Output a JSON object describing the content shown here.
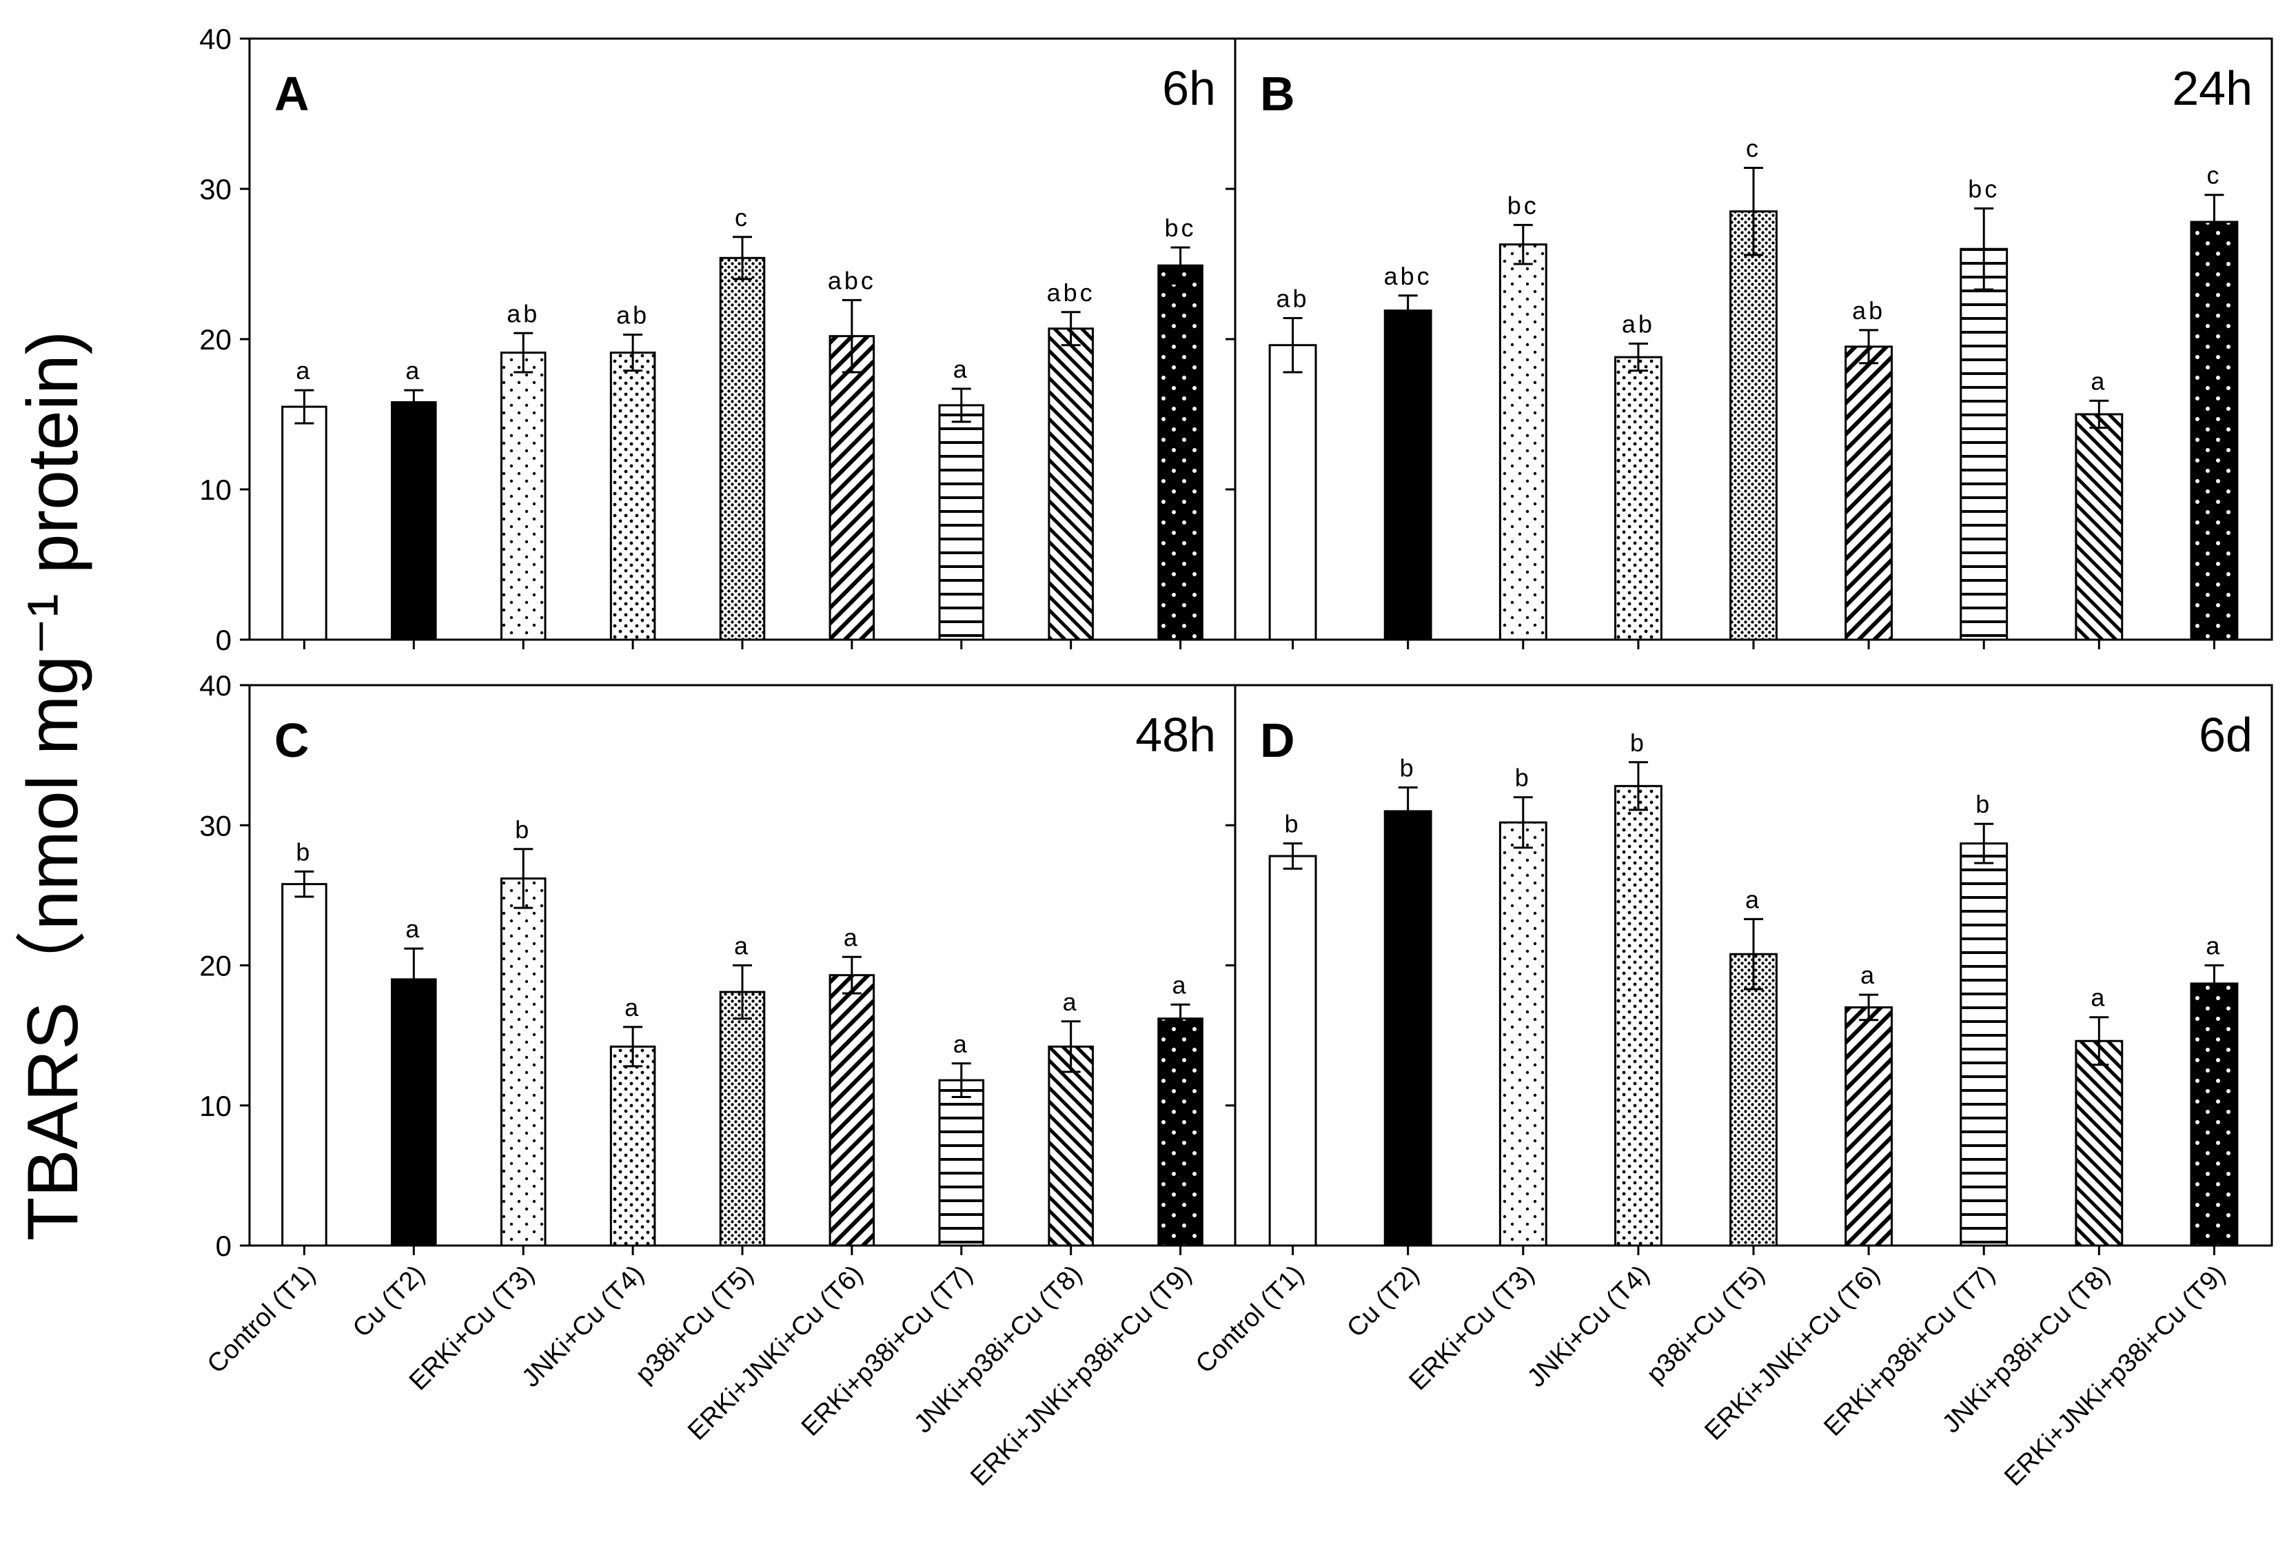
{
  "y_axis_title": "TBARS（nmol mg⁻¹ protein)",
  "chart_data": [
    {
      "type": "bar",
      "panel": "A",
      "time_label": "6h",
      "categories": [
        "Control (T1)",
        "Cu (T2)",
        "ERKi+Cu (T3)",
        "JNKi+Cu (T4)",
        "p38i+Cu (T5)",
        "ERKi+JNKi+Cu (T6)",
        "ERKi+p38i+Cu (T7)",
        "JNKi+p38i+Cu (T8)",
        "ERKi+JNKi+p38i+Cu (T9)"
      ],
      "values": [
        15.5,
        15.8,
        19.1,
        19.1,
        25.4,
        20.2,
        15.6,
        20.7,
        24.9
      ],
      "errors": [
        1.1,
        0.8,
        1.3,
        1.2,
        1.4,
        2.4,
        1.1,
        1.1,
        1.2
      ],
      "significance": [
        "a",
        "a",
        "ab",
        "ab",
        "c",
        "abc",
        "a",
        "abc",
        "bc"
      ],
      "ylim": [
        0,
        40
      ],
      "yticks": [
        0,
        10,
        20,
        30,
        40
      ]
    },
    {
      "type": "bar",
      "panel": "B",
      "time_label": "24h",
      "categories": [
        "Control (T1)",
        "Cu (T2)",
        "ERKi+Cu (T3)",
        "JNKi+Cu (T4)",
        "p38i+Cu (T5)",
        "ERKi+JNKi+Cu (T6)",
        "ERKi+p38i+Cu (T7)",
        "JNKi+p38i+Cu (T8)",
        "ERKi+JNKi+p38i+Cu (T9)"
      ],
      "values": [
        19.6,
        21.9,
        26.3,
        18.8,
        28.5,
        19.5,
        26.0,
        15.0,
        27.8
      ],
      "errors": [
        1.8,
        1.0,
        1.3,
        0.9,
        2.9,
        1.1,
        2.7,
        0.9,
        1.8
      ],
      "significance": [
        "ab",
        "abc",
        "bc",
        "ab",
        "c",
        "ab",
        "bc",
        "a",
        "c"
      ],
      "ylim": [
        0,
        40
      ],
      "yticks": [
        0,
        10,
        20,
        30,
        40
      ]
    },
    {
      "type": "bar",
      "panel": "C",
      "time_label": "48h",
      "categories": [
        "Control (T1)",
        "Cu (T2)",
        "ERKi+Cu (T3)",
        "JNKi+Cu (T4)",
        "p38i+Cu (T5)",
        "ERKi+JNKi+Cu (T6)",
        "ERKi+p38i+Cu (T7)",
        "JNKi+p38i+Cu (T8)",
        "ERKi+JNKi+p38i+Cu (T9)"
      ],
      "values": [
        25.8,
        19.0,
        26.2,
        14.2,
        18.1,
        19.3,
        11.8,
        14.2,
        16.2
      ],
      "errors": [
        0.9,
        2.2,
        2.1,
        1.4,
        1.9,
        1.3,
        1.2,
        1.8,
        1.0
      ],
      "significance": [
        "b",
        "a",
        "b",
        "a",
        "a",
        "a",
        "a",
        "a",
        "a"
      ],
      "ylim": [
        0,
        40
      ],
      "yticks": [
        0,
        10,
        20,
        30,
        40
      ]
    },
    {
      "type": "bar",
      "panel": "D",
      "time_label": "6d",
      "categories": [
        "Control (T1)",
        "Cu (T2)",
        "ERKi+Cu (T3)",
        "JNKi+Cu (T4)",
        "p38i+Cu (T5)",
        "ERKi+JNKi+Cu (T6)",
        "ERKi+p38i+Cu (T7)",
        "JNKi+p38i+Cu (T8)",
        "ERKi+JNKi+p38i+Cu (T9)"
      ],
      "values": [
        27.8,
        31.0,
        30.2,
        32.8,
        20.8,
        17.0,
        28.7,
        14.6,
        18.7
      ],
      "errors": [
        0.9,
        1.7,
        1.8,
        1.7,
        2.5,
        0.9,
        1.4,
        1.7,
        1.3
      ],
      "significance": [
        "b",
        "b",
        "b",
        "b",
        "a",
        "a",
        "b",
        "a",
        "a"
      ],
      "ylim": [
        0,
        40
      ],
      "yticks": [
        0,
        10,
        20,
        30,
        40
      ]
    }
  ],
  "fills": [
    "white",
    "black",
    "sparse-dots",
    "fine-dots",
    "dense-dots",
    "wide-diagonal",
    "horizontal-lines",
    "diagonal-lines",
    "black-white-dots"
  ]
}
